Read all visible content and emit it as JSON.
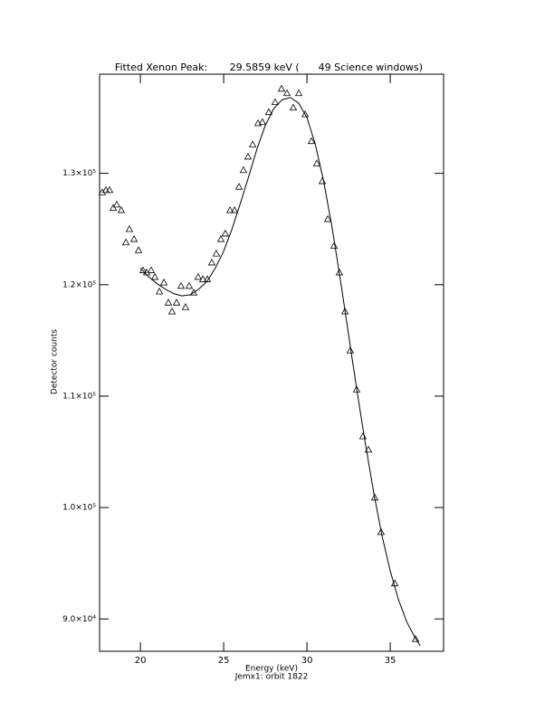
{
  "chart_data": {
    "type": "scatter",
    "title": "Fitted Xenon Peak:       29.5859 keV (      49 Science windows)",
    "x_label": "Energy (keV)",
    "subtitle": "Jemx1: orbit 1822",
    "y_label": "Detector counts",
    "color": "#000000",
    "xlim": [
      17.55,
      38.2
    ],
    "ylim": [
      87100,
      138900
    ],
    "xticks": [
      20,
      25,
      30,
      35
    ],
    "yticks": [
      {
        "value": 90000,
        "label": "9.0×10⁴"
      },
      {
        "value": 100000,
        "label": "1.0×10⁵"
      },
      {
        "value": 110000,
        "label": "1.1×10⁵"
      },
      {
        "value": 120000,
        "label": "1.2×10⁵"
      },
      {
        "value": 130000,
        "label": "1.3×10⁵"
      }
    ],
    "points": {
      "x": [
        17.71,
        17.93,
        18.15,
        18.37,
        18.58,
        18.85,
        19.13,
        19.34,
        19.62,
        19.89,
        20.16,
        20.38,
        20.65,
        20.87,
        21.14,
        21.41,
        21.68,
        21.9,
        22.17,
        22.44,
        22.71,
        22.93,
        23.2,
        23.47,
        23.75,
        24.02,
        24.29,
        24.56,
        24.83,
        25.1,
        25.38,
        25.65,
        25.92,
        26.19,
        26.46,
        26.74,
        27.06,
        27.33,
        27.71,
        28.09,
        28.47,
        28.8,
        29.18,
        29.51,
        29.89,
        30.27,
        30.59,
        30.92,
        31.25,
        31.63,
        31.95,
        32.28,
        32.6,
        32.98,
        33.36,
        33.69,
        34.07,
        34.45,
        35.27,
        36.52
      ],
      "y": [
        128300,
        128500,
        128500,
        126900,
        127200,
        126700,
        123800,
        125000,
        124100,
        123100,
        121300,
        121100,
        121300,
        120700,
        119400,
        120200,
        118400,
        117600,
        118400,
        119900,
        118000,
        119900,
        119300,
        120700,
        120500,
        120500,
        122000,
        122800,
        124100,
        124600,
        126700,
        126700,
        128800,
        130300,
        131500,
        132600,
        134500,
        134600,
        135500,
        136400,
        137600,
        137200,
        135900,
        137200,
        135300,
        132900,
        130900,
        129300,
        125900,
        123500,
        121100,
        117600,
        114100,
        110600,
        106400,
        105200,
        100900,
        97800,
        93200,
        88200
      ]
    },
    "fit": {
      "x": [
        20.0,
        20.5,
        21.0,
        21.5,
        22.0,
        22.5,
        23.0,
        23.5,
        24.0,
        24.5,
        25.0,
        25.5,
        26.0,
        26.5,
        27.0,
        27.5,
        28.0,
        28.5,
        29.0,
        29.5,
        30.0,
        30.5,
        31.0,
        31.5,
        32.0,
        32.5,
        33.0,
        33.5,
        34.0,
        34.5,
        35.0,
        35.5,
        36.0,
        36.5,
        36.8
      ],
      "y": [
        121500,
        120700,
        120100,
        119600,
        119200,
        119000,
        119100,
        119600,
        120300,
        121500,
        123000,
        125000,
        127300,
        129700,
        132200,
        134300,
        135800,
        136600,
        136800,
        136300,
        135000,
        132600,
        129300,
        125200,
        120500,
        115500,
        110500,
        105800,
        101400,
        97500,
        94300,
        91700,
        89700,
        88300,
        87600
      ]
    }
  }
}
